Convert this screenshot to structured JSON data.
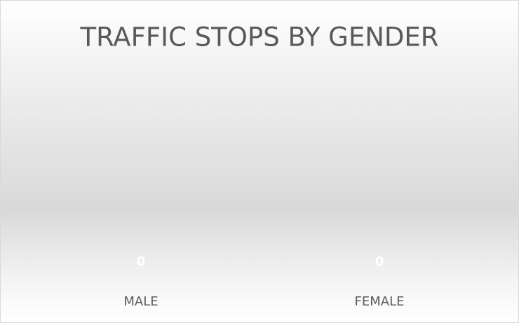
{
  "chart_data": {
    "type": "bar",
    "title": "TRAFFIC STOPS BY GENDER",
    "categories": [
      "MALE",
      "FEMALE"
    ],
    "values": [
      0,
      0
    ],
    "color": "#a5a5a5"
  }
}
